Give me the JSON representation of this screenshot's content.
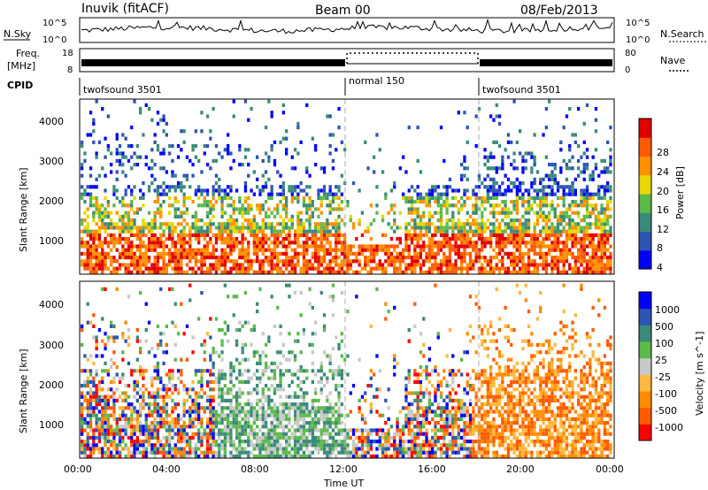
{
  "header": {
    "station": "Inuvik (fitACF)",
    "beam": "Beam 00",
    "date": "08/Feb/2013"
  },
  "strip_labels": {
    "nsky": "N.Sky",
    "freq_line1": "Freq.",
    "freq_line2": "[MHz]",
    "cpid": "CPID",
    "nsearch": "N.Search",
    "nave": "Nave"
  },
  "noise_axis": {
    "left_top": "10^5",
    "left_bottom": "10^0",
    "right_top": "10^5",
    "right_bottom": "10^0"
  },
  "freq_axis": {
    "left_ticks": [
      "18",
      "8"
    ],
    "right_ticks": [
      "80",
      "0"
    ]
  },
  "cpid_segments": [
    {
      "label": "twofsound 3501",
      "start_hr": 0,
      "end_hr": 12
    },
    {
      "label": "normal 150",
      "start_hr": 12,
      "end_hr": 18
    },
    {
      "label": "twofsound 3501",
      "start_hr": 18,
      "end_hr": 24
    }
  ],
  "colors": {
    "power_scale": [
      "#0000ff",
      "#2e54b4",
      "#3a8a7a",
      "#5cba4a",
      "#e8d800",
      "#ff9000",
      "#ff5a00",
      "#e00000"
    ],
    "velocity_scale": [
      "#ff0000",
      "#ff5a00",
      "#ff8c00",
      "#ffb840",
      "#c8c8c8",
      "#5cba4a",
      "#3a8a7a",
      "#2e54b4",
      "#0000ff"
    ]
  },
  "chart_data": [
    {
      "type": "heatmap",
      "panel": "power",
      "ylabel": "Slant Range [km]",
      "colorbar_label": "Power [dB]",
      "colorbar_ticks": [
        "4",
        "8",
        "12",
        "16",
        "20",
        "24",
        "28"
      ],
      "yticks": [
        "1000",
        "2000",
        "3000",
        "4000"
      ],
      "ylim": [
        180,
        4600
      ],
      "xlim": [
        0,
        24
      ],
      "grid": false
    },
    {
      "type": "heatmap",
      "panel": "velocity",
      "ylabel": "Slant Range [km]",
      "colorbar_label": "Velocity [m s^-1]",
      "colorbar_ticks": [
        "-1000",
        "-500",
        "-100",
        "-25",
        "25",
        "100",
        "500",
        "1000"
      ],
      "yticks": [
        "1000",
        "2000",
        "3000",
        "4000"
      ],
      "ylim": [
        180,
        4600
      ],
      "xlim": [
        0,
        24
      ],
      "xlabel": "Time UT",
      "xticks": [
        "00:00",
        "04:00",
        "08:00",
        "12:00",
        "16:00",
        "20:00",
        "00:00"
      ],
      "grid": false
    }
  ]
}
